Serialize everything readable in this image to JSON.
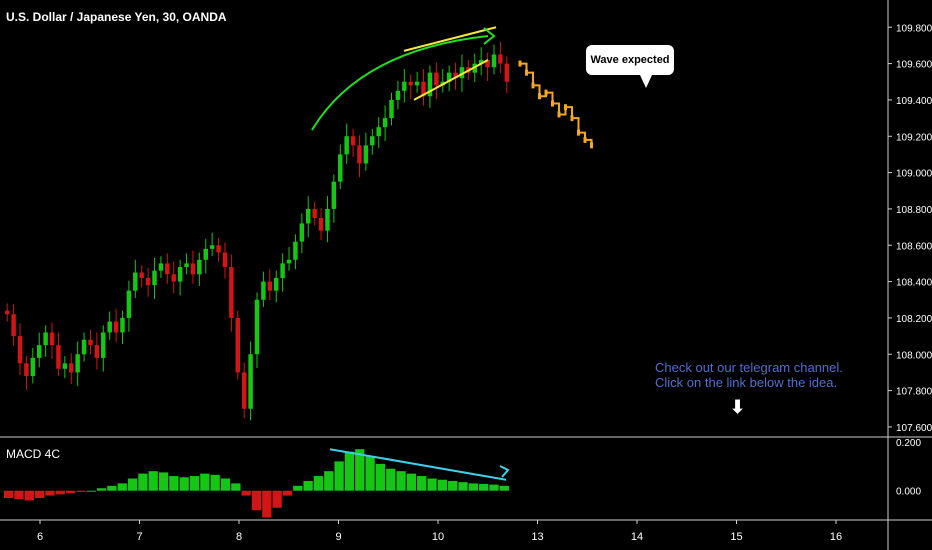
{
  "header": {
    "title": "U.S. Dollar / Japanese Yen, 30, OANDA"
  },
  "indicator": {
    "title": "MACD 4C"
  },
  "annotations": {
    "wave_label": "Wave expected",
    "telegram_note": "Check out our telegram channel.\nClick on the link below the idea."
  },
  "colors": {
    "up": "#15c615",
    "down": "#d31515",
    "forecast": "#f5a623",
    "wedge": "#f5e642",
    "arc": "#22dd22",
    "divergence": "#3fd0e8",
    "note": "#4f6fcf"
  },
  "chart_data": [
    {
      "type": "line",
      "series_kind": "candlestick",
      "ylim": [
        107.55,
        109.95
      ],
      "yticks": [
        "109.800",
        "109.600",
        "109.400",
        "109.200",
        "109.000",
        "108.800",
        "108.600",
        "108.400",
        "108.200",
        "108.000",
        "107.800",
        "107.600"
      ],
      "xticks": [
        "6",
        "7",
        "8",
        "9",
        "10",
        "13",
        "14",
        "15",
        "16"
      ],
      "series": [
        {
          "values": [
            108.22,
            108.1,
            107.95,
            107.88,
            107.98,
            108.05,
            108.12,
            108.05,
            107.92,
            107.95,
            107.9,
            108.0,
            108.08,
            108.05,
            107.98,
            108.12,
            108.18,
            108.12,
            108.2,
            108.35,
            108.45,
            108.42,
            108.38,
            108.46,
            108.5,
            108.44,
            108.4,
            108.48,
            108.5,
            108.44,
            108.52,
            108.58,
            108.6,
            108.56,
            108.48,
            108.2,
            107.9,
            107.7,
            108.0,
            108.3,
            108.4,
            108.35,
            108.42,
            108.5,
            108.52,
            108.62,
            108.72,
            108.8,
            108.75,
            108.68,
            108.8,
            108.95,
            109.1,
            109.2,
            109.15,
            109.05,
            109.15,
            109.2,
            109.25,
            109.3,
            109.4,
            109.45,
            109.5,
            109.48,
            109.5,
            109.42,
            109.55,
            109.48,
            109.5,
            109.55,
            109.52,
            109.58,
            109.55,
            109.6,
            109.62,
            109.58,
            109.65,
            109.6,
            109.5
          ]
        },
        {
          "name": "forecast",
          "values": [
            109.6,
            109.55,
            109.48,
            109.42,
            109.44,
            109.38,
            109.32,
            109.36,
            109.3,
            109.22,
            109.18,
            109.15
          ]
        }
      ]
    },
    {
      "type": "bar",
      "series_kind": "macd-histogram",
      "ylim": [
        -0.12,
        0.22
      ],
      "yticks": [
        "0.200",
        "0.000"
      ],
      "values": [
        -0.03,
        -0.035,
        -0.04,
        -0.03,
        -0.02,
        -0.015,
        -0.01,
        -0.005,
        0.0,
        0.01,
        0.02,
        0.03,
        0.05,
        0.07,
        0.08,
        0.075,
        0.06,
        0.055,
        0.06,
        0.07,
        0.065,
        0.05,
        0.03,
        -0.02,
        -0.08,
        -0.11,
        -0.07,
        -0.02,
        0.02,
        0.04,
        0.06,
        0.08,
        0.12,
        0.16,
        0.17,
        0.14,
        0.11,
        0.09,
        0.08,
        0.07,
        0.06,
        0.05,
        0.045,
        0.04,
        0.035,
        0.03,
        0.028,
        0.025,
        0.02
      ]
    }
  ]
}
